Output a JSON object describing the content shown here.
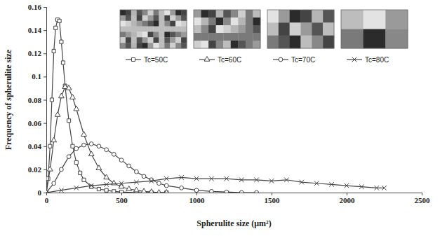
{
  "chart_data": {
    "type": "line",
    "x_label": "Spherulite size (μm²)",
    "y_label": "Frequency of spherulite size",
    "xlim": [
      0,
      2500
    ],
    "xticks": [
      0,
      500,
      1000,
      1500,
      2000,
      2500
    ],
    "ylim": [
      0,
      0.16
    ],
    "yticks": [
      0,
      0.02,
      0.04,
      0.06,
      0.08,
      0.1,
      0.12,
      0.14,
      0.16
    ],
    "grid": false,
    "legend": "top",
    "series": [
      {
        "name": "Tc=50C",
        "color": "#444444",
        "marker": "square",
        "x": [
          0,
          12,
          25,
          37,
          50,
          62,
          75,
          87,
          100,
          112,
          125,
          150,
          175,
          200,
          225,
          250,
          300,
          350,
          400,
          450,
          500,
          600,
          700,
          800
        ],
        "values": [
          0,
          0.012,
          0.04,
          0.08,
          0.122,
          0.142,
          0.149,
          0.148,
          0.13,
          0.112,
          0.092,
          0.062,
          0.04,
          0.026,
          0.017,
          0.011,
          0.005,
          0.003,
          0.002,
          0.001,
          0.0005,
          0,
          0,
          0
        ]
      },
      {
        "name": "Tc=60C",
        "color": "#444444",
        "marker": "triangle",
        "x": [
          0,
          25,
          50,
          75,
          100,
          125,
          150,
          175,
          200,
          250,
          300,
          350,
          400,
          450,
          500,
          550,
          600,
          650,
          700,
          750,
          800
        ],
        "values": [
          0,
          0.02,
          0.045,
          0.067,
          0.083,
          0.091,
          0.09,
          0.082,
          0.072,
          0.05,
          0.033,
          0.021,
          0.013,
          0.008,
          0.005,
          0.003,
          0.002,
          0.001,
          0.0005,
          0,
          0
        ]
      },
      {
        "name": "Tc=70C",
        "color": "#444444",
        "marker": "circle",
        "x": [
          0,
          50,
          100,
          150,
          200,
          250,
          300,
          350,
          400,
          450,
          500,
          550,
          600,
          650,
          700,
          750,
          800,
          900,
          1000,
          1100,
          1200,
          1300,
          1400
        ],
        "values": [
          0,
          0.008,
          0.02,
          0.031,
          0.038,
          0.041,
          0.042,
          0.04,
          0.037,
          0.033,
          0.028,
          0.023,
          0.018,
          0.014,
          0.011,
          0.008,
          0.006,
          0.004,
          0.002,
          0.001,
          0.0005,
          0,
          0
        ]
      },
      {
        "name": "Tc=80C",
        "color": "#444444",
        "marker": "x",
        "x": [
          0,
          100,
          200,
          300,
          400,
          500,
          600,
          700,
          800,
          900,
          1000,
          1100,
          1200,
          1300,
          1400,
          1500,
          1600,
          1700,
          1800,
          1900,
          2000,
          2100,
          2200,
          2250
        ],
        "values": [
          0,
          0.002,
          0.004,
          0.006,
          0.007,
          0.008,
          0.009,
          0.01,
          0.012,
          0.013,
          0.012,
          0.012,
          0.012,
          0.011,
          0.011,
          0.01,
          0.011,
          0.009,
          0.008,
          0.007,
          0.006,
          0.005,
          0.004,
          0.004
        ]
      }
    ]
  }
}
